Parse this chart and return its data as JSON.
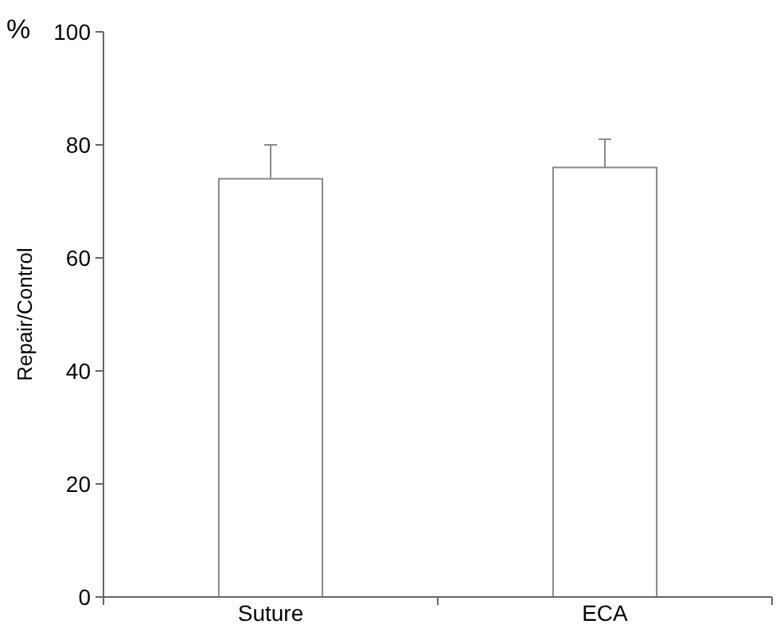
{
  "chart_data": {
    "type": "bar",
    "ylabel": "Repair/Control",
    "annotations": [
      "%"
    ],
    "categories": [
      "Suture",
      "ECA"
    ],
    "values": [
      74,
      76
    ],
    "errors": [
      [
        74,
        80
      ],
      [
        76,
        81
      ]
    ],
    "color": "#ffffff",
    "ylim": [
      0,
      100
    ],
    "yticks": [
      0,
      20,
      40,
      60,
      80,
      100
    ],
    "grid": false
  }
}
